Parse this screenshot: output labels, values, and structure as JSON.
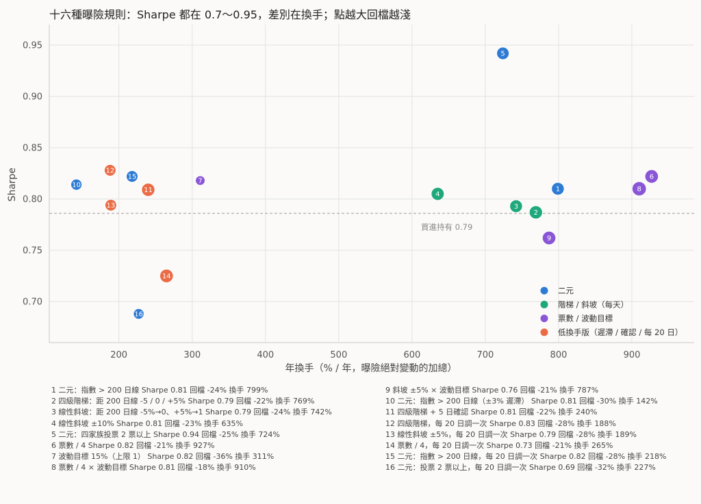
{
  "chart_data": {
    "type": "scatter",
    "title": "十六種曝險規則：Sharpe 都在 0.7～0.95，差別在換手；點越大回檔越淺",
    "xlabel": "年換手（% / 年，曝險絕對變動的加總）",
    "ylabel": "Sharpe",
    "xlim": [
      105,
      985
    ],
    "ylim": [
      0.66,
      0.97
    ],
    "xticks": [
      200,
      300,
      400,
      500,
      600,
      700,
      800,
      900
    ],
    "yticks": [
      0.7,
      0.75,
      0.8,
      0.85,
      0.9,
      0.95
    ],
    "ytick_labels": [
      "0.70",
      "0.75",
      "0.80",
      "0.85",
      "0.90",
      "0.95"
    ],
    "grid": true,
    "legend_position": "lower-right",
    "reference_line": {
      "y": 0.786,
      "label": "買進持有 0.79"
    },
    "series": [
      {
        "name": "二元",
        "color": "#2e7bd4",
        "points": [
          {
            "id": "1",
            "x": 799,
            "y": 0.81,
            "drawdown": -24
          },
          {
            "id": "5",
            "x": 724,
            "y": 0.942,
            "drawdown": -25
          },
          {
            "id": "10",
            "x": 142,
            "y": 0.814,
            "drawdown": -30
          },
          {
            "id": "15",
            "x": 218,
            "y": 0.822,
            "drawdown": -28
          },
          {
            "id": "16",
            "x": 227,
            "y": 0.688,
            "drawdown": -32
          }
        ]
      },
      {
        "name": "階梯 / 斜坡（每天）",
        "color": "#1fa87b",
        "points": [
          {
            "id": "2",
            "x": 769,
            "y": 0.787,
            "drawdown": -22
          },
          {
            "id": "3",
            "x": 742,
            "y": 0.793,
            "drawdown": -24
          },
          {
            "id": "4",
            "x": 635,
            "y": 0.805,
            "drawdown": -23
          }
        ]
      },
      {
        "name": "票數 / 波動目標",
        "color": "#8a56d6",
        "points": [
          {
            "id": "6",
            "x": 927,
            "y": 0.822,
            "drawdown": -21
          },
          {
            "id": "7",
            "x": 311,
            "y": 0.818,
            "drawdown": -36
          },
          {
            "id": "8",
            "x": 910,
            "y": 0.81,
            "drawdown": -18
          },
          {
            "id": "9",
            "x": 787,
            "y": 0.762,
            "drawdown": -21
          }
        ]
      },
      {
        "name": "低換手版（遲滯 / 確認 / 每 20 日）",
        "color": "#ea6b45",
        "points": [
          {
            "id": "11",
            "x": 240,
            "y": 0.809,
            "drawdown": -22
          },
          {
            "id": "12",
            "x": 188,
            "y": 0.828,
            "drawdown": -28
          },
          {
            "id": "13",
            "x": 189,
            "y": 0.794,
            "drawdown": -28
          },
          {
            "id": "14",
            "x": 265,
            "y": 0.725,
            "drawdown": -21
          }
        ]
      }
    ]
  },
  "footnotes": {
    "left": [
      "1  二元：指數 > 200 日線    Sharpe 0.81    回檔 -24%    換手 799%",
      "2  四級階梯：距 200 日線 -5 / 0 / +5%    Sharpe 0.79    回檔 -22%    換手 769%",
      "3  線性斜坡：距 200 日線 -5%→0、+5%→1    Sharpe 0.79    回檔 -24%    換手 742%",
      "4  線性斜坡 ±10%    Sharpe 0.81    回檔 -23%    換手 635%",
      "5  二元：四家族投票 2 票以上    Sharpe 0.94    回檔 -25%    換手 724%",
      "6  票數 / 4    Sharpe 0.82    回檔 -21%    換手 927%",
      "7  波動目標 15%（上限 1）    Sharpe 0.82    回檔 -36%    換手 311%",
      "8  票數 / 4 × 波動目標    Sharpe 0.81    回檔 -18%    換手 910%"
    ],
    "right": [
      "9  斜坡 ±5% × 波動目標    Sharpe 0.76    回檔 -21%    換手 787%",
      "10  二元：指數 > 200 日線（±3% 遲滯）    Sharpe 0.81    回檔 -30%    換手 142%",
      "11  四級階梯 + 5 日確認    Sharpe 0.81    回檔 -22%    換手 240%",
      "12  四級階梯，每 20 日調一次    Sharpe 0.83    回檔 -28%    換手 188%",
      "13  線性斜坡 ±5%，每 20 日調一次    Sharpe 0.79    回檔 -28%    換手 189%",
      "14  票數 / 4，每 20 日調一次    Sharpe 0.73    回檔 -21%    換手 265%",
      "15  二元：指數 > 200 日線，每 20 日調一次    Sharpe 0.82    回檔 -28%    換手 218%",
      "16  二元：投票 2 票以上，每 20 日調一次    Sharpe 0.69    回檔 -32%    換手 227%"
    ]
  }
}
